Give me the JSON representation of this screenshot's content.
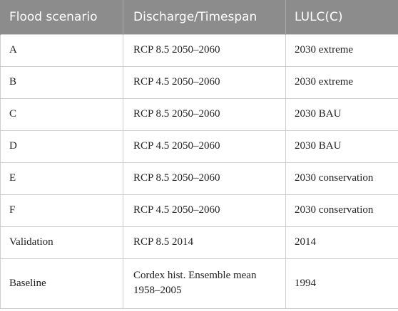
{
  "table": {
    "headers": {
      "scenario": "Flood scenario",
      "discharge_timespan": "Discharge/Timespan",
      "lulc": "LULC(C)"
    },
    "rows": [
      {
        "scenario": "A",
        "discharge_timespan": "RCP 8.5 2050–2060",
        "lulc": "2030 extreme"
      },
      {
        "scenario": "B",
        "discharge_timespan": "RCP 4.5 2050–2060",
        "lulc": "2030 extreme"
      },
      {
        "scenario": "C",
        "discharge_timespan": "RCP 8.5 2050–2060",
        "lulc": "2030 BAU"
      },
      {
        "scenario": "D",
        "discharge_timespan": "RCP 4.5 2050–2060",
        "lulc": "2030 BAU"
      },
      {
        "scenario": "E",
        "discharge_timespan": "RCP 8.5 2050–2060",
        "lulc": "2030 conservation"
      },
      {
        "scenario": "F",
        "discharge_timespan": "RCP 4.5 2050–2060",
        "lulc": "2030 conservation"
      },
      {
        "scenario": "Validation",
        "discharge_timespan": "RCP 8.5 2014",
        "lulc": "2014"
      },
      {
        "scenario": "Baseline",
        "discharge_timespan": "Cordex hist. Ensemble mean 1958–2005",
        "lulc": "1994"
      }
    ]
  },
  "colors": {
    "header_bg": "#8c8c8c",
    "header_text": "#ffffff",
    "border": "#cfcfcf",
    "body_text": "#222222"
  }
}
